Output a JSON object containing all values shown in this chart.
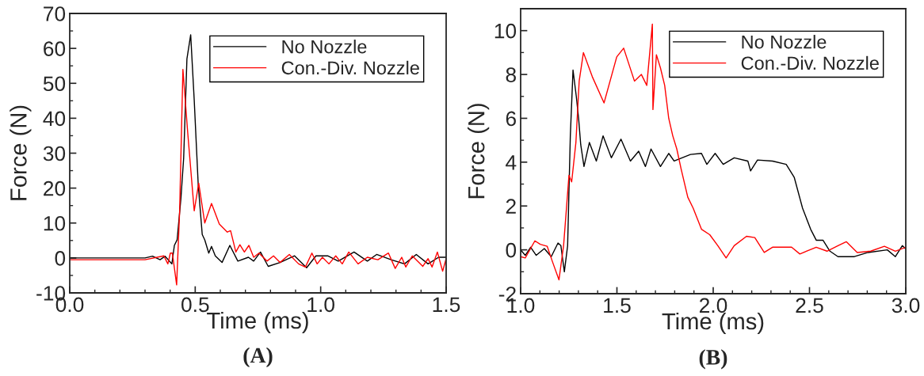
{
  "chart_data": [
    {
      "type": "line",
      "xlabel": "Time (ms)",
      "ylabel": "Force (N)",
      "annotations": [
        "(A)"
      ],
      "xlim": [
        0,
        1.5
      ],
      "ylim": [
        -10,
        70
      ],
      "xticks": [
        {
          "value": 0,
          "label": "0.0"
        },
        0.5,
        {
          "value": 1,
          "label": "1.0"
        },
        1.5
      ],
      "yticks": [
        -10,
        0,
        10,
        20,
        30,
        40,
        50,
        60,
        70
      ],
      "legend": "top right",
      "grid": false,
      "series": [
        {
          "name": "No Nozzle",
          "color": "#000000",
          "x": [
            0,
            0.1,
            0.2,
            0.3,
            0.33,
            0.36,
            0.38,
            0.407,
            0.417,
            0.428,
            0.443,
            0.454,
            0.467,
            0.482,
            0.496,
            0.512,
            0.528,
            0.538,
            0.554,
            0.565,
            0.58,
            0.607,
            0.638,
            0.67,
            0.712,
            0.733,
            0.76,
            0.791,
            0.838,
            0.896,
            0.944,
            0.981,
            1.028,
            1.07,
            1.133,
            1.186,
            1.223,
            1.281,
            1.334,
            1.381,
            1.428,
            1.47,
            1.5
          ],
          "values": [
            0,
            0,
            0,
            0,
            0.5,
            -0.5,
            0.5,
            -1.7,
            3.6,
            5.2,
            17,
            28.6,
            57,
            63.9,
            45.3,
            21,
            6.7,
            5.2,
            1.4,
            3.3,
            0.6,
            -1.3,
            3.6,
            -0.9,
            0.2,
            -0.9,
            1.7,
            -2.4,
            -1.3,
            0.6,
            -2.8,
            0.6,
            0.6,
            -0.9,
            1.7,
            -0.9,
            1.0,
            -0.5,
            -1.7,
            1.0,
            -1.7,
            0.2,
            0.2
          ]
        },
        {
          "name": "Con.-Div. Nozzle",
          "color": "#ff0000",
          "x": [
            0,
            0.1,
            0.2,
            0.3,
            0.375,
            0.391,
            0.401,
            0.409,
            0.426,
            0.438,
            0.451,
            0.47,
            0.496,
            0.514,
            0.538,
            0.565,
            0.596,
            0.628,
            0.641,
            0.662,
            0.678,
            0.696,
            0.714,
            0.733,
            0.754,
            0.786,
            0.812,
            0.838,
            0.875,
            0.912,
            0.939,
            0.965,
            0.986,
            1.007,
            1.033,
            1.06,
            1.086,
            1.112,
            1.149,
            1.186,
            1.228,
            1.27,
            1.297,
            1.323,
            1.339,
            1.365,
            1.407,
            1.428,
            1.444,
            1.465,
            1.486,
            1.5
          ],
          "values": [
            -0.5,
            -0.5,
            -0.5,
            -0.5,
            0.6,
            -1.7,
            1.4,
            1.4,
            -7.7,
            13.5,
            54,
            36,
            13.5,
            21.4,
            10,
            15.6,
            9.7,
            7.4,
            7.8,
            1.7,
            3.8,
            1.7,
            3.6,
            0.2,
            1.4,
            -0.9,
            0.6,
            -1.3,
            1.0,
            -1.7,
            -2.6,
            1.4,
            -1.7,
            0.2,
            -1.7,
            0.6,
            -1.7,
            1.7,
            -1.7,
            0.2,
            -0.5,
            1.4,
            -3.0,
            0.2,
            -2.6,
            0.6,
            -2.4,
            -0.2,
            -2.6,
            1.7,
            -3.8,
            -0.2
          ]
        }
      ]
    },
    {
      "type": "line",
      "xlabel": "Time (ms)",
      "ylabel": "Force (N)",
      "annotations": [
        "(B)"
      ],
      "xlim": [
        1,
        3
      ],
      "ylim": [
        -2,
        11
      ],
      "xticks": [
        {
          "value": 1,
          "label": "1.0"
        },
        1.5,
        {
          "value": 2,
          "label": "2.0"
        },
        2.5,
        {
          "value": 3,
          "label": "3.0"
        }
      ],
      "yticks": [
        -2,
        0,
        2,
        4,
        6,
        8,
        10
      ],
      "legend": "top right",
      "grid": false,
      "series": [
        {
          "name": "No Nozzle",
          "color": "#000000",
          "x": [
            1.0,
            1.024,
            1.052,
            1.081,
            1.123,
            1.159,
            1.194,
            1.209,
            1.227,
            1.244,
            1.258,
            1.272,
            1.289,
            1.301,
            1.312,
            1.329,
            1.357,
            1.393,
            1.428,
            1.471,
            1.521,
            1.57,
            1.613,
            1.648,
            1.677,
            1.726,
            1.769,
            1.797,
            1.882,
            1.939,
            1.967,
            2.01,
            2.052,
            2.109,
            2.18,
            2.194,
            2.23,
            2.308,
            2.379,
            2.421,
            2.464,
            2.506,
            2.535,
            2.57,
            2.606,
            2.648,
            2.733,
            2.804,
            2.904,
            2.946,
            2.982,
            3.0
          ],
          "values": [
            0,
            -0.25,
            0.12,
            -0.25,
            0.06,
            -0.31,
            0.31,
            0.19,
            -1.0,
            0.19,
            5.2,
            8.2,
            7.0,
            6.0,
            4.8,
            3.8,
            4.9,
            4.05,
            5.2,
            4.2,
            5.05,
            4.05,
            4.5,
            3.8,
            4.6,
            3.8,
            4.4,
            4.05,
            4.35,
            4.4,
            3.9,
            4.4,
            3.9,
            4.2,
            4.05,
            3.6,
            4.1,
            4.05,
            3.9,
            3.3,
            1.9,
            0.94,
            0.44,
            0.44,
            -0.06,
            -0.31,
            -0.31,
            -0.12,
            0,
            -0.31,
            0.19,
            0.04
          ]
        },
        {
          "name": "Con.-Div. Nozzle",
          "color": "#ff0000",
          "x": [
            1.0,
            1.024,
            1.074,
            1.102,
            1.138,
            1.166,
            1.199,
            1.223,
            1.251,
            1.265,
            1.287,
            1.304,
            1.326,
            1.372,
            1.433,
            1.499,
            1.535,
            1.591,
            1.627,
            1.655,
            1.684,
            1.687,
            1.705,
            1.726,
            1.748,
            1.769,
            1.79,
            1.811,
            1.833,
            1.868,
            1.896,
            1.939,
            1.982,
            2.024,
            2.067,
            2.109,
            2.173,
            2.216,
            2.265,
            2.308,
            2.407,
            2.45,
            2.535,
            2.591,
            2.648,
            2.691,
            2.748,
            2.818,
            2.889,
            2.946,
            3.0
          ],
          "values": [
            -0.31,
            -0.37,
            0.41,
            0.25,
            0.16,
            -0.56,
            -1.37,
            0.19,
            3.4,
            3.1,
            4.9,
            7.7,
            9.0,
            7.9,
            6.7,
            8.8,
            9.2,
            7.7,
            8.0,
            7.5,
            10.3,
            6.4,
            8.9,
            8.3,
            7.5,
            6.0,
            5.2,
            4.6,
            3.7,
            2.4,
            1.9,
            0.94,
            0.69,
            0.19,
            -0.37,
            0.19,
            0.62,
            0.56,
            -0.12,
            0.12,
            0.12,
            -0.19,
            0.12,
            -0.06,
            0.19,
            0.37,
            -0.12,
            -0.06,
            0.16,
            -0.06,
            0.12
          ]
        }
      ]
    }
  ]
}
